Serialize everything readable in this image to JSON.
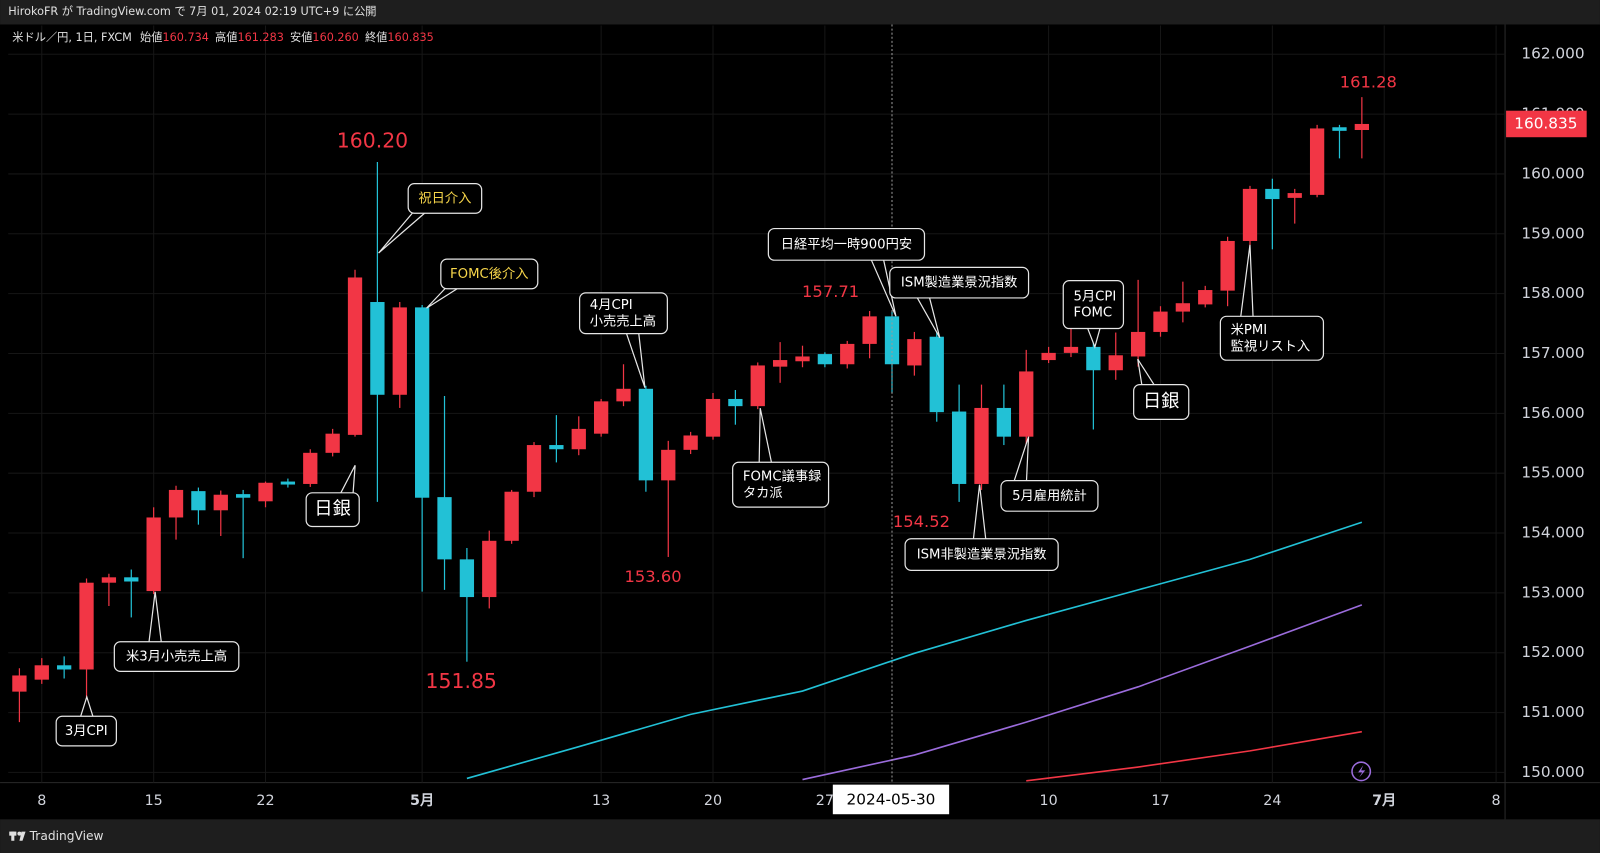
{
  "header": {
    "text": "HirokoFR が TradingView.com で 7月 01, 2024 02:19 UTC+9 に公開"
  },
  "legend": {
    "symbol": "米ドル／円, 1日, FXCM",
    "items": [
      {
        "name": "始値",
        "text": "160.734"
      },
      {
        "name": "高値",
        "text": "161.283"
      },
      {
        "name": "安値",
        "text": "160.260"
      },
      {
        "name": "終値",
        "text": "160.835"
      }
    ]
  },
  "footer": {
    "brand": "TradingView"
  },
  "chart_data": {
    "type": "candlestick",
    "up_color": "#f23645",
    "down_color": "#22c1d6",
    "candles": {
      "open": [
        151.35,
        151.55,
        151.79,
        151.72,
        153.17,
        153.26,
        153.03,
        154.26,
        154.7,
        154.38,
        154.65,
        154.53,
        154.86,
        154.82,
        155.34,
        155.64,
        157.86,
        156.31,
        157.77,
        154.6,
        153.56,
        152.93,
        153.87,
        154.69,
        155.47,
        155.4,
        155.66,
        156.2,
        156.41,
        154.88,
        155.39,
        155.61,
        156.24,
        156.12,
        156.78,
        156.87,
        156.99,
        156.82,
        157.16,
        157.62,
        156.8,
        157.28,
        156.03,
        154.82,
        156.09,
        155.61,
        156.89,
        157.01,
        157.11,
        156.72,
        156.95,
        157.36,
        157.7,
        157.82,
        158.05,
        158.88,
        159.75,
        159.6,
        159.65,
        160.78,
        160.734
      ],
      "high": [
        151.74,
        151.91,
        151.94,
        153.24,
        153.32,
        153.39,
        154.43,
        154.79,
        154.76,
        154.71,
        154.72,
        154.86,
        154.91,
        155.4,
        155.74,
        158.4,
        160.2,
        157.86,
        157.81,
        156.29,
        153.75,
        154.04,
        154.72,
        155.52,
        155.97,
        155.95,
        156.24,
        156.82,
        156.46,
        155.54,
        155.69,
        156.34,
        156.39,
        156.85,
        157.19,
        157.13,
        157.02,
        157.21,
        157.71,
        157.7,
        157.36,
        157.36,
        156.48,
        156.48,
        156.48,
        157.06,
        157.11,
        157.42,
        157.48,
        157.35,
        158.23,
        157.79,
        158.2,
        158.13,
        158.95,
        159.8,
        159.92,
        159.75,
        160.82,
        160.82,
        161.283
      ],
      "low": [
        150.84,
        151.48,
        151.57,
        150.97,
        152.78,
        152.59,
        152.98,
        153.89,
        154.14,
        153.95,
        153.58,
        154.43,
        154.76,
        154.77,
        155.28,
        155.61,
        154.52,
        156.09,
        153.02,
        153.05,
        151.85,
        152.74,
        153.82,
        154.6,
        155.18,
        155.3,
        155.61,
        156.12,
        154.69,
        153.6,
        155.32,
        155.56,
        155.81,
        156.07,
        156.51,
        156.77,
        156.77,
        156.75,
        156.92,
        156.34,
        156.63,
        155.86,
        154.52,
        154.72,
        155.47,
        155.11,
        156.84,
        156.94,
        155.73,
        156.56,
        156.78,
        157.28,
        157.52,
        157.77,
        157.79,
        158.81,
        158.74,
        159.17,
        159.61,
        160.26,
        160.26
      ],
      "close": [
        151.62,
        151.79,
        151.72,
        153.17,
        153.26,
        153.19,
        154.26,
        154.72,
        154.38,
        154.64,
        154.59,
        154.84,
        154.81,
        155.34,
        155.66,
        158.27,
        156.31,
        157.77,
        154.59,
        153.56,
        152.93,
        153.87,
        154.69,
        155.47,
        155.4,
        155.74,
        156.2,
        156.41,
        154.88,
        155.39,
        155.63,
        156.24,
        156.12,
        156.8,
        156.89,
        156.95,
        156.82,
        157.16,
        157.62,
        156.82,
        157.24,
        156.02,
        154.82,
        156.09,
        155.61,
        156.7,
        157.01,
        157.11,
        156.72,
        156.97,
        157.36,
        157.7,
        157.84,
        158.06,
        158.88,
        159.75,
        159.58,
        159.68,
        160.76,
        160.72,
        160.835
      ]
    },
    "ma_lines": [
      {
        "color": "#22c1d6",
        "x": [
          20,
          25,
          30,
          35,
          40,
          45,
          50,
          55,
          60
        ],
        "values": [
          149.9,
          150.43,
          150.97,
          151.36,
          151.99,
          152.54,
          153.05,
          153.56,
          154.18
        ]
      },
      {
        "color": "#9b6cdc",
        "x": [
          35,
          40,
          45,
          50,
          55,
          60
        ],
        "values": [
          149.88,
          150.29,
          150.84,
          151.43,
          152.11,
          152.8
        ]
      },
      {
        "color": "#f23645",
        "x": [
          45,
          50,
          55,
          60
        ],
        "values": [
          149.86,
          150.09,
          150.36,
          150.68
        ]
      }
    ],
    "xlim": [
      -0.5,
      66.4
    ],
    "xticks": [
      {
        "value": 1,
        "label": "8"
      },
      {
        "value": 6,
        "label": "15"
      },
      {
        "value": 11,
        "label": "22"
      },
      {
        "value": 18,
        "label": "5月"
      },
      {
        "value": 26,
        "label": "13"
      },
      {
        "value": 31,
        "label": "20"
      },
      {
        "value": 36,
        "label": "27"
      },
      {
        "value": 46,
        "label": "10"
      },
      {
        "value": 51,
        "label": "17"
      },
      {
        "value": 56,
        "label": "24"
      },
      {
        "value": 61,
        "label": "7月"
      },
      {
        "value": 66,
        "label": "8"
      }
    ],
    "ylim": [
      149.83,
      162.48
    ],
    "yticks": [
      {
        "value": 150,
        "label": "150.000"
      },
      {
        "value": 151,
        "label": "151.000"
      },
      {
        "value": 152,
        "label": "152.000"
      },
      {
        "value": 153,
        "label": "153.000"
      },
      {
        "value": 154,
        "label": "154.000"
      },
      {
        "value": 155,
        "label": "155.000"
      },
      {
        "value": 156,
        "label": "156.000"
      },
      {
        "value": 157,
        "label": "157.000"
      },
      {
        "value": 158,
        "label": "158.000"
      },
      {
        "value": 159,
        "label": "159.000"
      },
      {
        "value": 160,
        "label": "160.000"
      },
      {
        "value": 161,
        "label": "161.000"
      },
      {
        "value": 162,
        "label": "162.000"
      }
    ],
    "grid": true,
    "last_price": 160.835,
    "crosshair": {
      "x": 39,
      "label": "2024-05-30"
    },
    "price_labels": [
      {
        "value": 160.2,
        "label": "160.20"
      },
      {
        "value": 151.85,
        "label": "151.85"
      },
      {
        "value": 153.6,
        "label": "153.60"
      },
      {
        "value": 157.71,
        "label": "157.71"
      },
      {
        "value": 154.52,
        "label": "154.52"
      },
      {
        "value": 161.28,
        "label": "161.28"
      }
    ],
    "annotations": [
      {
        "lines": [
          "3月CPI"
        ],
        "color": "#ffffff"
      },
      {
        "lines": [
          "米3月小売売上高"
        ],
        "color": "#ffffff"
      },
      {
        "lines": [
          "日銀"
        ],
        "color": "#ffffff"
      },
      {
        "lines": [
          "祝日介入"
        ],
        "color": "#f7d64a"
      },
      {
        "lines": [
          "FOMC後介入"
        ],
        "color": "#f7d64a"
      },
      {
        "lines": [
          "4月CPI",
          "小売売上高"
        ],
        "color": "#ffffff"
      },
      {
        "lines": [
          "FOMC議事録",
          "タカ派"
        ],
        "color": "#ffffff"
      },
      {
        "lines": [
          "日経平均一時900円安"
        ],
        "color": "#ffffff"
      },
      {
        "lines": [
          "ISM製造業景況指数"
        ],
        "color": "#ffffff"
      },
      {
        "lines": [
          "ISM非製造業景況指数"
        ],
        "color": "#ffffff"
      },
      {
        "lines": [
          "5月雇用統計"
        ],
        "color": "#ffffff"
      },
      {
        "lines": [
          "5月CPI",
          "FOMC"
        ],
        "color": "#ffffff"
      },
      {
        "lines": [
          "日銀"
        ],
        "color": "#ffffff"
      },
      {
        "lines": [
          "米PMI",
          "監視リスト入"
        ],
        "color": "#ffffff"
      }
    ]
  }
}
